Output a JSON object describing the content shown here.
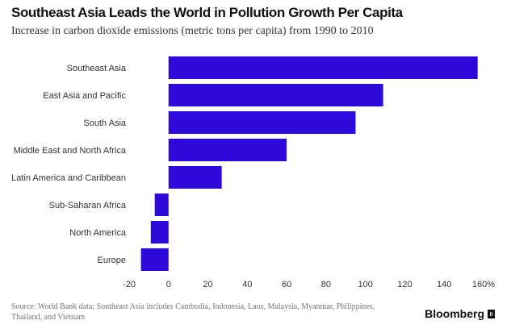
{
  "chart_data": {
    "type": "bar",
    "orientation": "horizontal",
    "title": "Southeast Asia Leads the World in Pollution Growth Per Capita",
    "subtitle": "Increase in carbon dioxide emissions (metric tons per capita) from 1990 to 2010",
    "categories": [
      "Southeast Asia",
      "East Asia and Pacific",
      "South Asia",
      "Middle East and North Africa",
      "Latin America and Caribbean",
      "Sub-Saharan Africa",
      "North America",
      "Europe"
    ],
    "values": [
      157,
      109,
      95,
      60,
      27,
      -7,
      -9,
      -14
    ],
    "xlim": [
      -20,
      160
    ],
    "x_ticks": [
      -20,
      0,
      20,
      40,
      60,
      80,
      100,
      120,
      140,
      160
    ],
    "x_tick_labels": [
      "-20",
      "0",
      "20",
      "40",
      "60",
      "80",
      "100",
      "120",
      "140",
      "160%"
    ],
    "bar_color": "#2d0ad9",
    "grid": false,
    "legend": "none"
  },
  "footer": {
    "source": "Source: World Bank data; Southeast Asia includes Cambodia, Indonesia, Laos, Malaysia, Myanmar, Philippines, Thailand, and Vietnam",
    "brand": "Bloomberg"
  }
}
